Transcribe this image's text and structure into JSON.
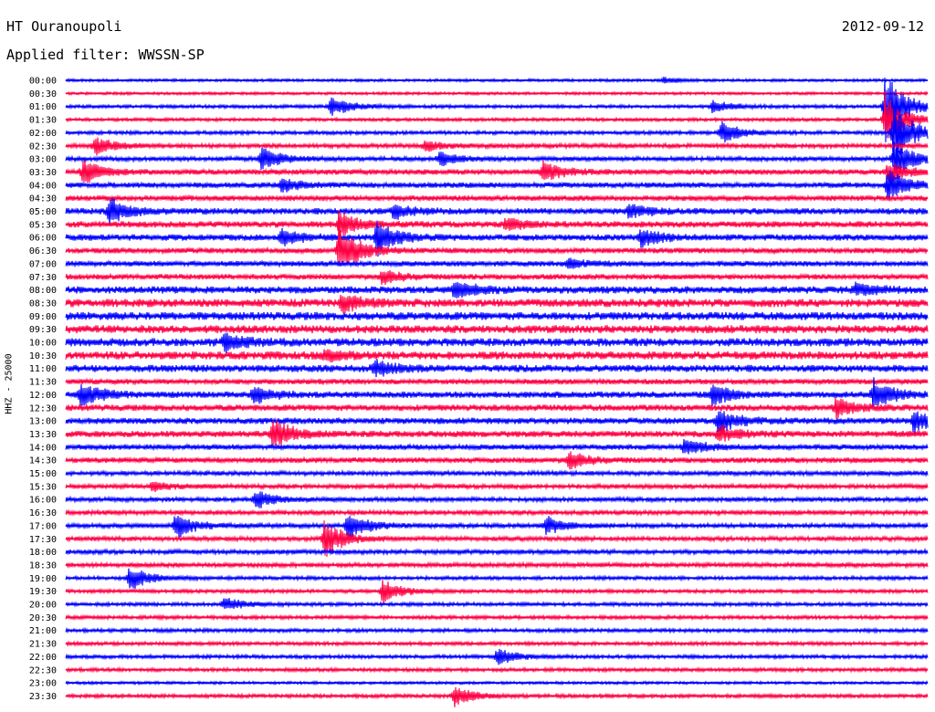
{
  "header": {
    "station": "HT Ouranoupoli",
    "date": "2012-09-12",
    "filter": "Applied filter: WWSSN-SP"
  },
  "colors": {
    "even_row": "#0000ff",
    "odd_row": "#ff0044"
  },
  "chart_data": {
    "type": "line",
    "title": "HT Ouranoupoli",
    "ylabel": "HHZ - 25000",
    "row_labels": [
      "00:00",
      "00:30",
      "01:00",
      "01:30",
      "02:00",
      "02:30",
      "03:00",
      "03:30",
      "04:00",
      "04:30",
      "05:00",
      "05:30",
      "06:00",
      "06:30",
      "07:00",
      "07:30",
      "08:00",
      "08:30",
      "09:00",
      "09:30",
      "10:00",
      "10:30",
      "11:00",
      "11:30",
      "12:00",
      "12:30",
      "13:00",
      "13:30",
      "14:00",
      "14:30",
      "15:00",
      "15:30",
      "16:00",
      "16:30",
      "17:00",
      "17:30",
      "18:00",
      "18:30",
      "19:00",
      "19:30",
      "20:00",
      "20:30",
      "21:00",
      "21:30",
      "22:00",
      "22:30",
      "23:00",
      "23:30"
    ],
    "x_range": [
      0,
      30
    ],
    "x_unit": "minutes within row",
    "noise_level": [
      1.5,
      1.5,
      1.8,
      1.8,
      2,
      2.5,
      2.5,
      3,
      3,
      3,
      3.5,
      3.5,
      3.5,
      3,
      3,
      3,
      4,
      4.5,
      4.5,
      4.5,
      4.5,
      4.5,
      4,
      3,
      3.5,
      3.5,
      3.5,
      3.5,
      3,
      3,
      2.5,
      2.5,
      2.5,
      2.5,
      2.5,
      2.5,
      2.5,
      2.5,
      2,
      2,
      2,
      2,
      2,
      2,
      2,
      2,
      1.5,
      2
    ],
    "events": [
      {
        "row": 0,
        "minute": 20.8,
        "amplitude": 3
      },
      {
        "row": 2,
        "minute": 9.2,
        "amplitude": 12
      },
      {
        "row": 2,
        "minute": 22.5,
        "amplitude": 7
      },
      {
        "row": 2,
        "minute": 28.5,
        "amplitude": 40
      },
      {
        "row": 3,
        "minute": 28.5,
        "amplitude": 30
      },
      {
        "row": 4,
        "minute": 22.8,
        "amplitude": 12
      },
      {
        "row": 4,
        "minute": 28.8,
        "amplitude": 35
      },
      {
        "row": 5,
        "minute": 1.0,
        "amplitude": 10
      },
      {
        "row": 5,
        "minute": 12.5,
        "amplitude": 6
      },
      {
        "row": 6,
        "minute": 6.8,
        "amplitude": 14
      },
      {
        "row": 6,
        "minute": 13.0,
        "amplitude": 8
      },
      {
        "row": 6,
        "minute": 28.8,
        "amplitude": 22
      },
      {
        "row": 7,
        "minute": 0.6,
        "amplitude": 14
      },
      {
        "row": 7,
        "minute": 16.6,
        "amplitude": 12
      },
      {
        "row": 7,
        "minute": 28.6,
        "amplitude": 12
      },
      {
        "row": 8,
        "minute": 7.5,
        "amplitude": 8
      },
      {
        "row": 8,
        "minute": 28.6,
        "amplitude": 18
      },
      {
        "row": 10,
        "minute": 1.5,
        "amplitude": 16
      },
      {
        "row": 10,
        "minute": 11.4,
        "amplitude": 8
      },
      {
        "row": 10,
        "minute": 19.6,
        "amplitude": 8
      },
      {
        "row": 11,
        "minute": 9.5,
        "amplitude": 14
      },
      {
        "row": 11,
        "minute": 15.3,
        "amplitude": 8
      },
      {
        "row": 12,
        "minute": 7.5,
        "amplitude": 10
      },
      {
        "row": 12,
        "minute": 10.8,
        "amplitude": 20
      },
      {
        "row": 12,
        "minute": 20.0,
        "amplitude": 10
      },
      {
        "row": 13,
        "minute": 9.5,
        "amplitude": 30
      },
      {
        "row": 14,
        "minute": 17.5,
        "amplitude": 6
      },
      {
        "row": 15,
        "minute": 11.0,
        "amplitude": 8
      },
      {
        "row": 16,
        "minute": 13.5,
        "amplitude": 10
      },
      {
        "row": 16,
        "minute": 27.5,
        "amplitude": 8
      },
      {
        "row": 17,
        "minute": 9.6,
        "amplitude": 10
      },
      {
        "row": 20,
        "minute": 5.5,
        "amplitude": 10
      },
      {
        "row": 21,
        "minute": 9.0,
        "amplitude": 6
      },
      {
        "row": 22,
        "minute": 10.7,
        "amplitude": 10
      },
      {
        "row": 24,
        "minute": 0.5,
        "amplitude": 14
      },
      {
        "row": 24,
        "minute": 6.5,
        "amplitude": 10
      },
      {
        "row": 24,
        "minute": 22.5,
        "amplitude": 12
      },
      {
        "row": 24,
        "minute": 28.1,
        "amplitude": 18
      },
      {
        "row": 25,
        "minute": 26.8,
        "amplitude": 12
      },
      {
        "row": 26,
        "minute": 22.7,
        "amplitude": 14
      },
      {
        "row": 26,
        "minute": 29.5,
        "amplitude": 12
      },
      {
        "row": 27,
        "minute": 7.2,
        "amplitude": 18
      },
      {
        "row": 27,
        "minute": 22.7,
        "amplitude": 10
      },
      {
        "row": 28,
        "minute": 21.5,
        "amplitude": 10
      },
      {
        "row": 29,
        "minute": 17.5,
        "amplitude": 10
      },
      {
        "row": 31,
        "minute": 3.0,
        "amplitude": 5
      },
      {
        "row": 32,
        "minute": 6.6,
        "amplitude": 10
      },
      {
        "row": 34,
        "minute": 3.8,
        "amplitude": 14
      },
      {
        "row": 34,
        "minute": 9.8,
        "amplitude": 16
      },
      {
        "row": 34,
        "minute": 16.7,
        "amplitude": 10
      },
      {
        "row": 35,
        "minute": 9.0,
        "amplitude": 22
      },
      {
        "row": 38,
        "minute": 2.2,
        "amplitude": 14
      },
      {
        "row": 39,
        "minute": 11.0,
        "amplitude": 14
      },
      {
        "row": 40,
        "minute": 5.5,
        "amplitude": 8
      },
      {
        "row": 44,
        "minute": 15.0,
        "amplitude": 10
      },
      {
        "row": 47,
        "minute": 13.5,
        "amplitude": 12
      }
    ]
  }
}
